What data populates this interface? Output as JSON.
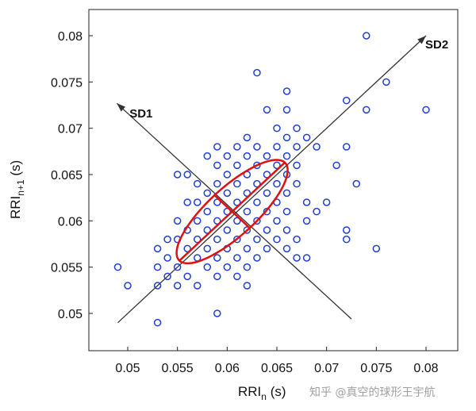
{
  "chart_data": {
    "type": "scatter",
    "xlabel": "RRI",
    "xlabel_sub": "n",
    "xlabel_unit": " (s)",
    "ylabel": "RRI",
    "ylabel_sub": "n+1",
    "ylabel_unit": " (s)",
    "xlim": [
      0.046,
      0.083
    ],
    "ylim": [
      0.046,
      0.083
    ],
    "xticks": [
      "0.05",
      "0.055",
      "0.06",
      "0.065",
      "0.07",
      "0.075",
      "0.08"
    ],
    "yticks": [
      "0.05",
      "0.055",
      "0.06",
      "0.065",
      "0.07",
      "0.075",
      "0.08"
    ],
    "xtick_values": [
      0.05,
      0.055,
      0.06,
      0.065,
      0.07,
      0.075,
      0.08
    ],
    "ytick_values": [
      0.05,
      0.055,
      0.06,
      0.065,
      0.07,
      0.075,
      0.08
    ],
    "grid": false,
    "marker_color": "#1f3fd0",
    "ellipse_color": "#e01010",
    "axis_arrow_color": "#333333",
    "points": [
      [
        0.074,
        0.08
      ],
      [
        0.063,
        0.076
      ],
      [
        0.076,
        0.075
      ],
      [
        0.066,
        0.074
      ],
      [
        0.072,
        0.073
      ],
      [
        0.064,
        0.072
      ],
      [
        0.066,
        0.072
      ],
      [
        0.074,
        0.072
      ],
      [
        0.08,
        0.072
      ],
      [
        0.065,
        0.07
      ],
      [
        0.067,
        0.07
      ],
      [
        0.062,
        0.069
      ],
      [
        0.066,
        0.069
      ],
      [
        0.068,
        0.069
      ],
      [
        0.059,
        0.068
      ],
      [
        0.061,
        0.068
      ],
      [
        0.063,
        0.068
      ],
      [
        0.065,
        0.068
      ],
      [
        0.067,
        0.068
      ],
      [
        0.069,
        0.068
      ],
      [
        0.072,
        0.068
      ],
      [
        0.058,
        0.067
      ],
      [
        0.06,
        0.067
      ],
      [
        0.062,
        0.067
      ],
      [
        0.064,
        0.067
      ],
      [
        0.066,
        0.067
      ],
      [
        0.055,
        0.065
      ],
      [
        0.056,
        0.065
      ],
      [
        0.059,
        0.066
      ],
      [
        0.061,
        0.066
      ],
      [
        0.063,
        0.066
      ],
      [
        0.065,
        0.066
      ],
      [
        0.067,
        0.066
      ],
      [
        0.071,
        0.066
      ],
      [
        0.06,
        0.065
      ],
      [
        0.062,
        0.065
      ],
      [
        0.064,
        0.065
      ],
      [
        0.066,
        0.065
      ],
      [
        0.057,
        0.064
      ],
      [
        0.059,
        0.064
      ],
      [
        0.061,
        0.064
      ],
      [
        0.063,
        0.064
      ],
      [
        0.065,
        0.064
      ],
      [
        0.067,
        0.064
      ],
      [
        0.073,
        0.064
      ],
      [
        0.058,
        0.063
      ],
      [
        0.06,
        0.063
      ],
      [
        0.062,
        0.063
      ],
      [
        0.064,
        0.063
      ],
      [
        0.066,
        0.063
      ],
      [
        0.056,
        0.062
      ],
      [
        0.057,
        0.062
      ],
      [
        0.059,
        0.062
      ],
      [
        0.061,
        0.062
      ],
      [
        0.063,
        0.062
      ],
      [
        0.065,
        0.062
      ],
      [
        0.068,
        0.062
      ],
      [
        0.07,
        0.062
      ],
      [
        0.058,
        0.061
      ],
      [
        0.06,
        0.061
      ],
      [
        0.062,
        0.061
      ],
      [
        0.064,
        0.061
      ],
      [
        0.066,
        0.061
      ],
      [
        0.069,
        0.061
      ],
      [
        0.055,
        0.06
      ],
      [
        0.057,
        0.06
      ],
      [
        0.059,
        0.06
      ],
      [
        0.061,
        0.06
      ],
      [
        0.063,
        0.06
      ],
      [
        0.065,
        0.06
      ],
      [
        0.068,
        0.06
      ],
      [
        0.056,
        0.059
      ],
      [
        0.058,
        0.059
      ],
      [
        0.06,
        0.059
      ],
      [
        0.062,
        0.059
      ],
      [
        0.064,
        0.059
      ],
      [
        0.066,
        0.059
      ],
      [
        0.072,
        0.059
      ],
      [
        0.054,
        0.058
      ],
      [
        0.055,
        0.058
      ],
      [
        0.057,
        0.058
      ],
      [
        0.059,
        0.058
      ],
      [
        0.061,
        0.058
      ],
      [
        0.063,
        0.058
      ],
      [
        0.065,
        0.058
      ],
      [
        0.067,
        0.058
      ],
      [
        0.072,
        0.058
      ],
      [
        0.053,
        0.057
      ],
      [
        0.056,
        0.057
      ],
      [
        0.058,
        0.057
      ],
      [
        0.06,
        0.057
      ],
      [
        0.062,
        0.057
      ],
      [
        0.064,
        0.057
      ],
      [
        0.066,
        0.057
      ],
      [
        0.075,
        0.057
      ],
      [
        0.054,
        0.056
      ],
      [
        0.057,
        0.056
      ],
      [
        0.059,
        0.056
      ],
      [
        0.061,
        0.056
      ],
      [
        0.063,
        0.056
      ],
      [
        0.067,
        0.056
      ],
      [
        0.068,
        0.056
      ],
      [
        0.049,
        0.055
      ],
      [
        0.053,
        0.055
      ],
      [
        0.055,
        0.055
      ],
      [
        0.058,
        0.055
      ],
      [
        0.06,
        0.055
      ],
      [
        0.062,
        0.055
      ],
      [
        0.054,
        0.054
      ],
      [
        0.056,
        0.054
      ],
      [
        0.059,
        0.054
      ],
      [
        0.061,
        0.054
      ],
      [
        0.05,
        0.053
      ],
      [
        0.053,
        0.053
      ],
      [
        0.055,
        0.053
      ],
      [
        0.057,
        0.053
      ],
      [
        0.062,
        0.053
      ],
      [
        0.059,
        0.05
      ],
      [
        0.053,
        0.049
      ]
    ],
    "ellipse": {
      "center": [
        0.0605,
        0.061
      ],
      "sd1": 0.0025,
      "sd2": 0.0075,
      "angle_deg": 45
    },
    "sd1_axis": {
      "from": [
        0.0725,
        0.0494
      ],
      "to": [
        0.0489,
        0.0727
      ],
      "label": "SD1"
    },
    "sd2_axis": {
      "from": [
        0.049,
        0.049
      ],
      "to": [
        0.08,
        0.08
      ],
      "label": "SD2"
    }
  },
  "watermark": "知乎 @真空的球形王宇航"
}
